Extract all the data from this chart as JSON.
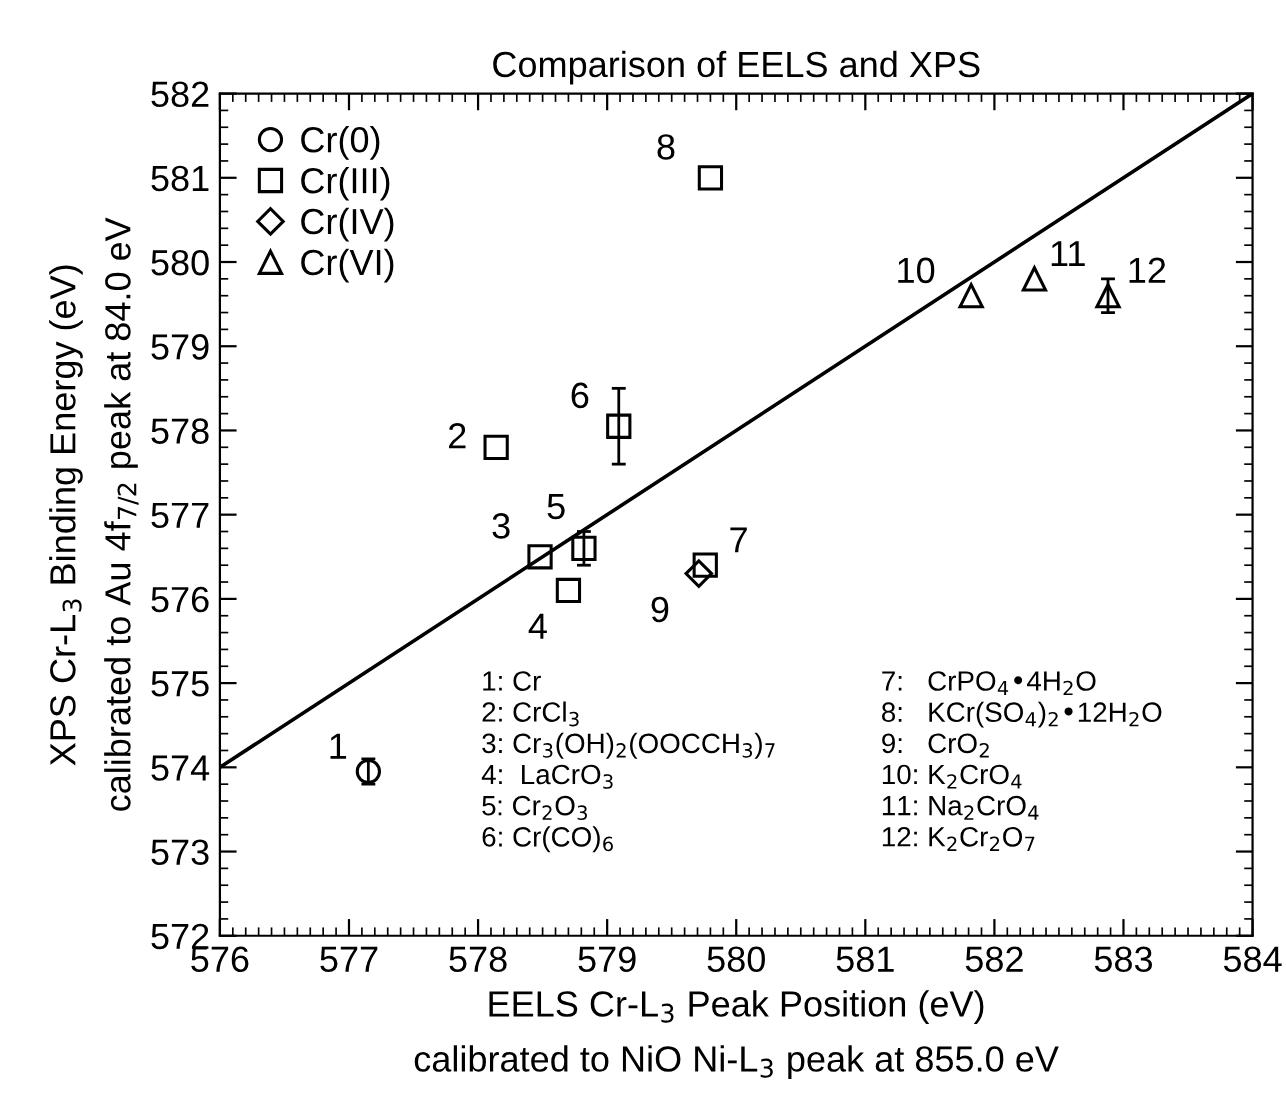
{
  "chart_data": {
    "type": "scatter",
    "title": "Comparison of EELS and XPS",
    "xlabel": "EELS Cr-L$_{3}$ Peak Position (eV)\ncalibrated to NiO Ni-L$_{3}$ peak at 855.0 eV",
    "ylabel": "XPS Cr-L$_{3}$ Binding Energy (eV)\ncalibrated to Au 4f$_{7/2}$ peak at 84.0 eV",
    "xlim": [
      576,
      584
    ],
    "xticks": [
      576,
      577,
      578,
      579,
      580,
      581,
      582,
      583,
      584
    ],
    "ylim": [
      572,
      582
    ],
    "yticks": [
      572,
      573,
      574,
      575,
      576,
      577,
      578,
      579,
      580,
      581,
      582
    ],
    "grid": false,
    "legend": "top left",
    "series": [
      {
        "name": "Cr(0)",
        "color": "#000000",
        "marker": "circle",
        "x": [
          577.15
        ],
        "values": [
          573.95
        ],
        "errors": [
          0.15
        ]
      },
      {
        "name": "Cr(III)",
        "color": "#000000",
        "marker": "square",
        "x": [
          578.14,
          578.48,
          578.7,
          578.82,
          579.09,
          579.76,
          579.8
        ],
        "values": [
          577.8,
          576.5,
          576.1,
          576.6,
          578.05,
          576.4,
          581.0
        ],
        "errors": [
          null,
          null,
          null,
          0.2,
          0.45,
          null,
          null
        ]
      },
      {
        "name": "Cr(IV)",
        "color": "#000000",
        "marker": "diamond",
        "x": [
          579.71
        ],
        "values": [
          576.3
        ]
      },
      {
        "name": "Cr(VI)",
        "color": "#000000",
        "marker": "triangle",
        "x": [
          581.82,
          582.31,
          582.88
        ],
        "values": [
          579.6,
          579.8,
          579.6
        ],
        "errors": [
          null,
          null,
          0.2
        ]
      },
      {
        "type": "line",
        "color": "#000000",
        "marker": "none",
        "line_style": "solid",
        "x": [
          576,
          584
        ],
        "values": [
          574,
          582
        ]
      }
    ],
    "annotations": [
      {
        "text": "1",
        "x": 577.15,
        "y": 573.95
      },
      {
        "text": "2",
        "x": 578.14,
        "y": 577.8
      },
      {
        "text": "3",
        "x": 578.48,
        "y": 576.5
      },
      {
        "text": "4",
        "x": 578.7,
        "y": 576.1
      },
      {
        "text": "5",
        "x": 578.82,
        "y": 576.6
      },
      {
        "text": "6",
        "x": 579.09,
        "y": 578.05
      },
      {
        "text": "7",
        "x": 579.76,
        "y": 576.4
      },
      {
        "text": "8",
        "x": 579.8,
        "y": 581.0
      },
      {
        "text": "9",
        "x": 579.71,
        "y": 576.3
      },
      {
        "text": "10",
        "x": 581.82,
        "y": 579.6
      },
      {
        "text": "11",
        "x": 582.31,
        "y": 579.8
      },
      {
        "text": "12",
        "x": 582.88,
        "y": 579.6
      },
      "1: Cr",
      "2: CrCl$_{3}$",
      "3: Cr$_{3}$(OH)$_{2}$(OOCCH$_{3}$)$_{7}$",
      "4:  LaCrO$_{3}$",
      "5: Cr$_{2}$O$_{3}$",
      "6: Cr(CO)$_{6}$",
      "7:   CrPO$_{4}$•4H$_{2}$O",
      "8:   KCr(SO$_{4}$)$_{2}$•12H$_{2}$O",
      "9:   CrO$_{2}$",
      "10: K$_{2}$CrO$_{4}$",
      "11: Na$_{2}$CrO$_{4}$",
      "12: K$_{2}$Cr$_{2}$O$_{7}$"
    ]
  }
}
